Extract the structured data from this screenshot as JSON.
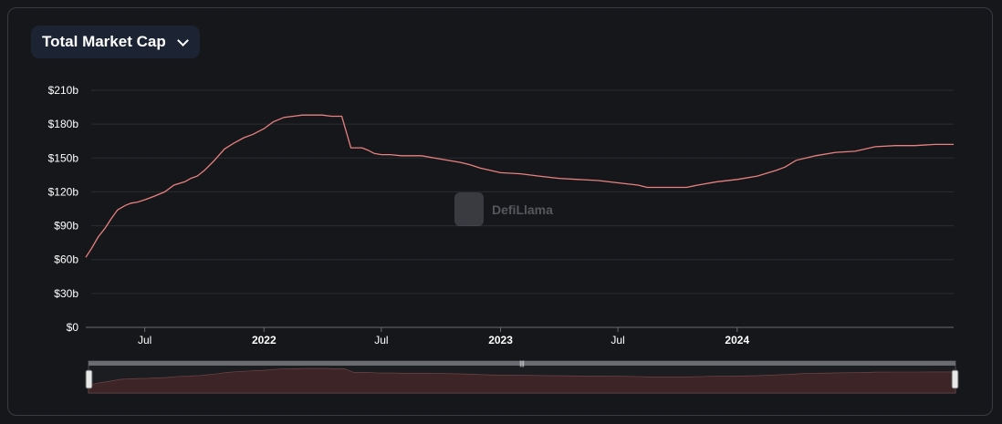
{
  "selector": {
    "label": "Total Market Cap"
  },
  "watermark": {
    "text": "DefiLlama"
  },
  "colors": {
    "line": "#e8817f",
    "grid": "#2a2c31",
    "axis_text": "#ffffff",
    "slider_fill": "#3d2527"
  },
  "chart_data": {
    "type": "line",
    "title": "",
    "xlabel": "",
    "ylabel": "",
    "ylim": [
      0,
      210
    ],
    "y_unit": "billion USD",
    "y_ticks": [
      "$0",
      "$30b",
      "$60b",
      "$90b",
      "$120b",
      "$150b",
      "$180b",
      "$210b"
    ],
    "y_tick_values": [
      0,
      30,
      60,
      90,
      120,
      150,
      180,
      210
    ],
    "x_range": [
      "2021-04-01",
      "2024-11-30"
    ],
    "x_ticks": [
      {
        "date": "2021-07-01",
        "label": "Jul",
        "bold": false
      },
      {
        "date": "2022-01-01",
        "label": "2022",
        "bold": true
      },
      {
        "date": "2022-07-01",
        "label": "Jul",
        "bold": false
      },
      {
        "date": "2023-01-01",
        "label": "2023",
        "bold": true
      },
      {
        "date": "2023-07-01",
        "label": "Jul",
        "bold": false
      },
      {
        "date": "2024-01-01",
        "label": "2024",
        "bold": true
      }
    ],
    "grid": true,
    "legend": "none",
    "series": [
      {
        "x": [
          "2021-04-01",
          "2021-04-10",
          "2021-04-20",
          "2021-05-01",
          "2021-05-10",
          "2021-05-20",
          "2021-06-01",
          "2021-06-10",
          "2021-06-20",
          "2021-07-01",
          "2021-07-15",
          "2021-08-01",
          "2021-08-15",
          "2021-09-01",
          "2021-09-10",
          "2021-09-20",
          "2021-10-01",
          "2021-10-15",
          "2021-11-01",
          "2021-11-15",
          "2021-12-01",
          "2021-12-15",
          "2022-01-01",
          "2022-01-15",
          "2022-02-01",
          "2022-02-15",
          "2022-03-01",
          "2022-03-15",
          "2022-04-01",
          "2022-04-15",
          "2022-05-01",
          "2022-05-15",
          "2022-05-28",
          "2022-06-01",
          "2022-06-10",
          "2022-06-20",
          "2022-07-01",
          "2022-07-15",
          "2022-08-01",
          "2022-09-01",
          "2022-10-01",
          "2022-11-01",
          "2022-11-15",
          "2022-12-01",
          "2023-01-01",
          "2023-02-01",
          "2023-03-01",
          "2023-04-01",
          "2023-05-01",
          "2023-06-01",
          "2023-07-01",
          "2023-08-01",
          "2023-08-15",
          "2023-09-01",
          "2023-10-01",
          "2023-10-15",
          "2023-11-01",
          "2023-12-01",
          "2024-01-01",
          "2024-02-01",
          "2024-03-01",
          "2024-03-15",
          "2024-04-01",
          "2024-05-01",
          "2024-06-01",
          "2024-07-01",
          "2024-08-01",
          "2024-09-01",
          "2024-10-01",
          "2024-11-01",
          "2024-11-30"
        ],
        "values": [
          62,
          70,
          80,
          88,
          96,
          104,
          108,
          110,
          111,
          113,
          116,
          120,
          126,
          129,
          132,
          134,
          139,
          147,
          158,
          163,
          168,
          171,
          176,
          182,
          186,
          187,
          188,
          188,
          188,
          187,
          187,
          159,
          159,
          159,
          157,
          154,
          153,
          153,
          152,
          152,
          149,
          146,
          144,
          141,
          137,
          136,
          134,
          132,
          131,
          130,
          128,
          126,
          124,
          124,
          124,
          124,
          126,
          129,
          131,
          134,
          139,
          142,
          148,
          152,
          155,
          156,
          160,
          161,
          161,
          162,
          162
        ]
      }
    ]
  }
}
